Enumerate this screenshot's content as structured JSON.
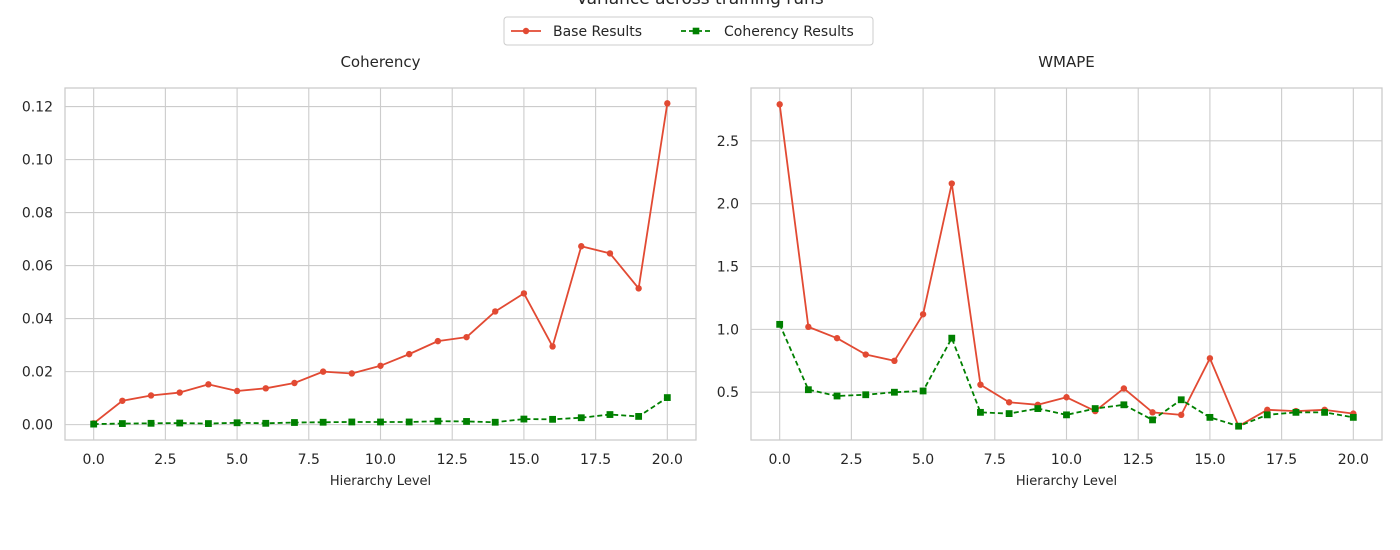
{
  "figure": {
    "suptitle": "Variance across training runs"
  },
  "legend": {
    "placement": "top-center",
    "entries": [
      {
        "label": "Base Results",
        "color": "#e24a33",
        "marker": "circle",
        "linestyle": "solid"
      },
      {
        "label": "Coherency Results",
        "color": "#008000",
        "marker": "square",
        "linestyle": "dashed"
      }
    ]
  },
  "chart_data": [
    {
      "type": "line",
      "title": "Coherency",
      "xlabel": "Hierarchy Level",
      "ylabel": "",
      "xlim": [
        -1,
        21
      ],
      "ylim": [
        -0.0058,
        0.127
      ],
      "xticks": [
        0.0,
        2.5,
        5.0,
        7.5,
        10.0,
        12.5,
        15.0,
        17.5,
        20.0
      ],
      "xtick_labels": [
        "0.0",
        "2.5",
        "5.0",
        "7.5",
        "10.0",
        "12.5",
        "15.0",
        "17.5",
        "20.0"
      ],
      "yticks": [
        0.0,
        0.02,
        0.04,
        0.06,
        0.08,
        0.1,
        0.12
      ],
      "ytick_labels": [
        "0.00",
        "0.02",
        "0.04",
        "0.06",
        "0.08",
        "0.10",
        "0.12"
      ],
      "grid": true,
      "x": [
        0,
        1,
        2,
        3,
        4,
        5,
        6,
        7,
        8,
        9,
        10,
        11,
        12,
        13,
        14,
        15,
        16,
        17,
        18,
        19,
        20
      ],
      "series": [
        {
          "name": "Base Results",
          "color": "#e24a33",
          "marker": "circle",
          "linestyle": "solid",
          "values": [
            0.0005,
            0.009,
            0.011,
            0.0121,
            0.0152,
            0.0127,
            0.0137,
            0.0157,
            0.02,
            0.0193,
            0.0222,
            0.0266,
            0.0315,
            0.033,
            0.0427,
            0.0495,
            0.0295,
            0.0673,
            0.0646,
            0.0514,
            0.1212
          ]
        },
        {
          "name": "Coherency Results",
          "color": "#008000",
          "marker": "square",
          "linestyle": "dashed",
          "values": [
            0.0002,
            0.0004,
            0.0005,
            0.0006,
            0.0004,
            0.0007,
            0.0005,
            0.0008,
            0.0009,
            0.001,
            0.001,
            0.001,
            0.0013,
            0.0012,
            0.0009,
            0.0021,
            0.002,
            0.0026,
            0.0038,
            0.0031,
            0.0102
          ]
        }
      ]
    },
    {
      "type": "line",
      "title": "WMAPE",
      "xlabel": "Hierarchy Level",
      "ylabel": "",
      "xlim": [
        -1,
        21
      ],
      "ylim": [
        0.12,
        2.92
      ],
      "xticks": [
        0.0,
        2.5,
        5.0,
        7.5,
        10.0,
        12.5,
        15.0,
        17.5,
        20.0
      ],
      "xtick_labels": [
        "0.0",
        "2.5",
        "5.0",
        "7.5",
        "10.0",
        "12.5",
        "15.0",
        "17.5",
        "20.0"
      ],
      "yticks": [
        0.5,
        1.0,
        1.5,
        2.0,
        2.5
      ],
      "ytick_labels": [
        "0.5",
        "1.0",
        "1.5",
        "2.0",
        "2.5"
      ],
      "grid": true,
      "x": [
        0,
        1,
        2,
        3,
        4,
        5,
        6,
        7,
        8,
        9,
        10,
        11,
        12,
        13,
        14,
        15,
        16,
        17,
        18,
        19,
        20
      ],
      "series": [
        {
          "name": "Base Results",
          "color": "#e24a33",
          "marker": "circle",
          "linestyle": "solid",
          "values": [
            2.79,
            1.02,
            0.93,
            0.8,
            0.75,
            1.12,
            2.16,
            0.56,
            0.42,
            0.4,
            0.46,
            0.35,
            0.53,
            0.34,
            0.32,
            0.77,
            0.23,
            0.36,
            0.35,
            0.36,
            0.33
          ]
        },
        {
          "name": "Coherency Results",
          "color": "#008000",
          "marker": "square",
          "linestyle": "dashed",
          "values": [
            1.04,
            0.52,
            0.47,
            0.48,
            0.5,
            0.51,
            0.93,
            0.34,
            0.33,
            0.37,
            0.32,
            0.37,
            0.4,
            0.28,
            0.44,
            0.3,
            0.23,
            0.32,
            0.34,
            0.34,
            0.3
          ]
        }
      ]
    }
  ]
}
